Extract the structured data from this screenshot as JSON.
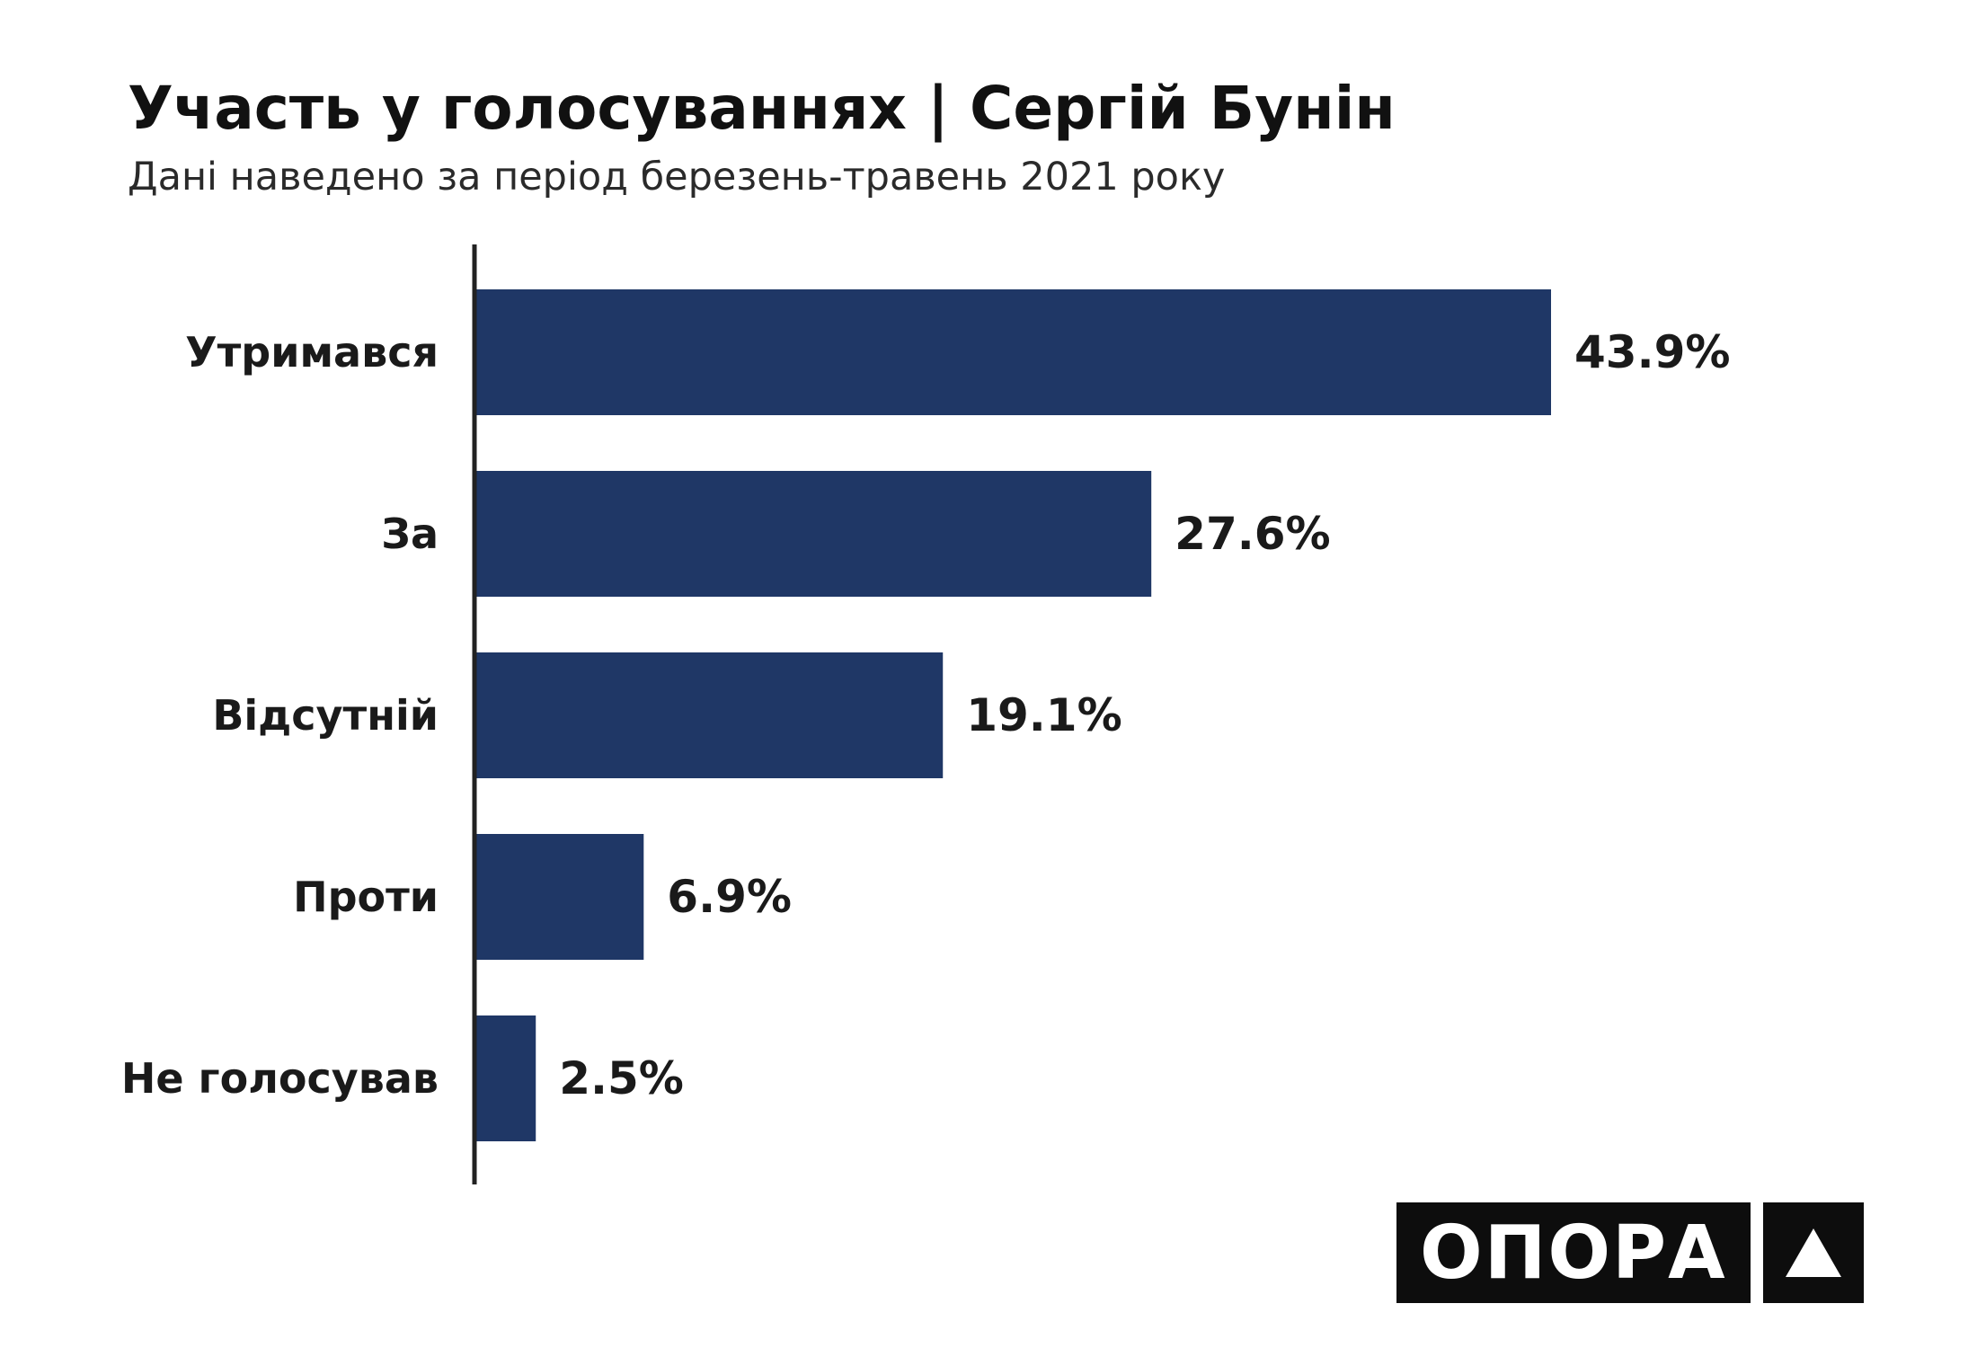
{
  "header": {
    "title": "Участь у голосуваннях | Сергій Бунін",
    "subtitle": "Дані наведено за період березень-травень 2021 року"
  },
  "logo": {
    "text": "ОПОРА",
    "mark": "triangle-icon"
  },
  "colors": {
    "bar": "#1f3766",
    "axis": "#222222",
    "label": "#1a1a1a"
  },
  "chart_data": {
    "type": "bar",
    "orientation": "horizontal",
    "categories": [
      "Утримався",
      "За",
      "Відсутній",
      "Проти",
      "Не голосував"
    ],
    "values": [
      43.9,
      27.6,
      19.1,
      6.9,
      2.5
    ],
    "value_labels": [
      "43.9%",
      "27.6%",
      "19.1%",
      "6.9%",
      "2.5%"
    ],
    "xlim": [
      0,
      43.9
    ],
    "grid": false,
    "legend": "none"
  }
}
